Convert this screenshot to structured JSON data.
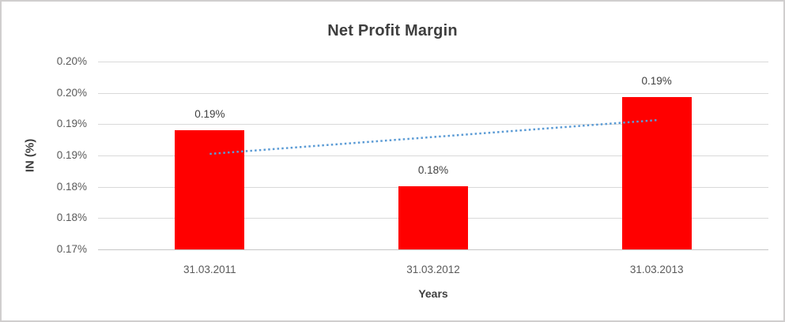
{
  "chart_data": {
    "type": "bar",
    "title": "Net Profit Margin",
    "xlabel": "Years",
    "ylabel": "IN (%)",
    "categories": [
      "31.03.2011",
      "31.03.2012",
      "31.03.2013"
    ],
    "values": [
      0.189,
      0.1801,
      0.1943
    ],
    "data_labels": [
      "0.19%",
      "0.18%",
      "0.19%"
    ],
    "value_units": "percent",
    "ylim": [
      0.17,
      0.2
    ],
    "y_tick_values": [
      0.2,
      0.195,
      0.19,
      0.185,
      0.18,
      0.175,
      0.17
    ],
    "y_tick_labels": [
      "0.20%",
      "0.20%",
      "0.19%",
      "0.19%",
      "0.18%",
      "0.18%",
      "0.17%"
    ],
    "grid": true,
    "legend": "none",
    "bar_color": "#ff0000",
    "trendline": {
      "type": "linear",
      "style": "dotted",
      "color": "#5b9bd5",
      "start_value": 0.18525,
      "end_value": 0.19065
    }
  },
  "colors": {
    "background": "#ffffff",
    "border": "#d0cece",
    "gridline": "#d9d9d9",
    "axis_line": "#c6c6c6",
    "title_text": "#3f3f3f",
    "tick_text": "#595959",
    "data_label_text": "#404040"
  }
}
